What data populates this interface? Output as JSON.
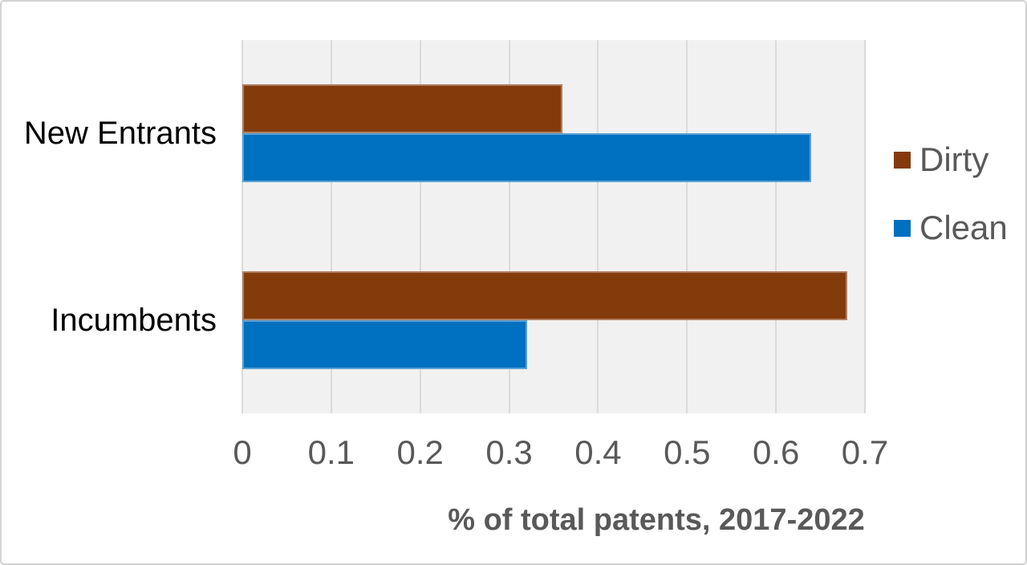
{
  "chart_data": {
    "type": "bar",
    "orientation": "horizontal",
    "title": "",
    "xlabel": "% of total patents, 2017-2022",
    "categories": [
      "New Entrants",
      "Incumbents"
    ],
    "series": [
      {
        "name": "Dirty",
        "color": "#843b0c",
        "values": [
          0.36,
          0.68
        ]
      },
      {
        "name": "Clean",
        "color": "#0070c0",
        "values": [
          0.64,
          0.32
        ]
      }
    ],
    "xlim": [
      0,
      0.7
    ],
    "xticks": {
      "values": [
        0,
        0.1,
        0.2,
        0.3,
        0.4,
        0.5,
        0.6,
        0.7
      ],
      "labels": [
        "0",
        "0.1",
        "0.2",
        "0.3",
        "0.4",
        "0.5",
        "0.6",
        "0.7"
      ]
    },
    "grid": true,
    "legend_position": "right",
    "colors": {
      "plot_background": "#f1f1f1",
      "gridline": "#dbdbdb",
      "axis_text": "#595959",
      "category_text": "#000000"
    }
  }
}
